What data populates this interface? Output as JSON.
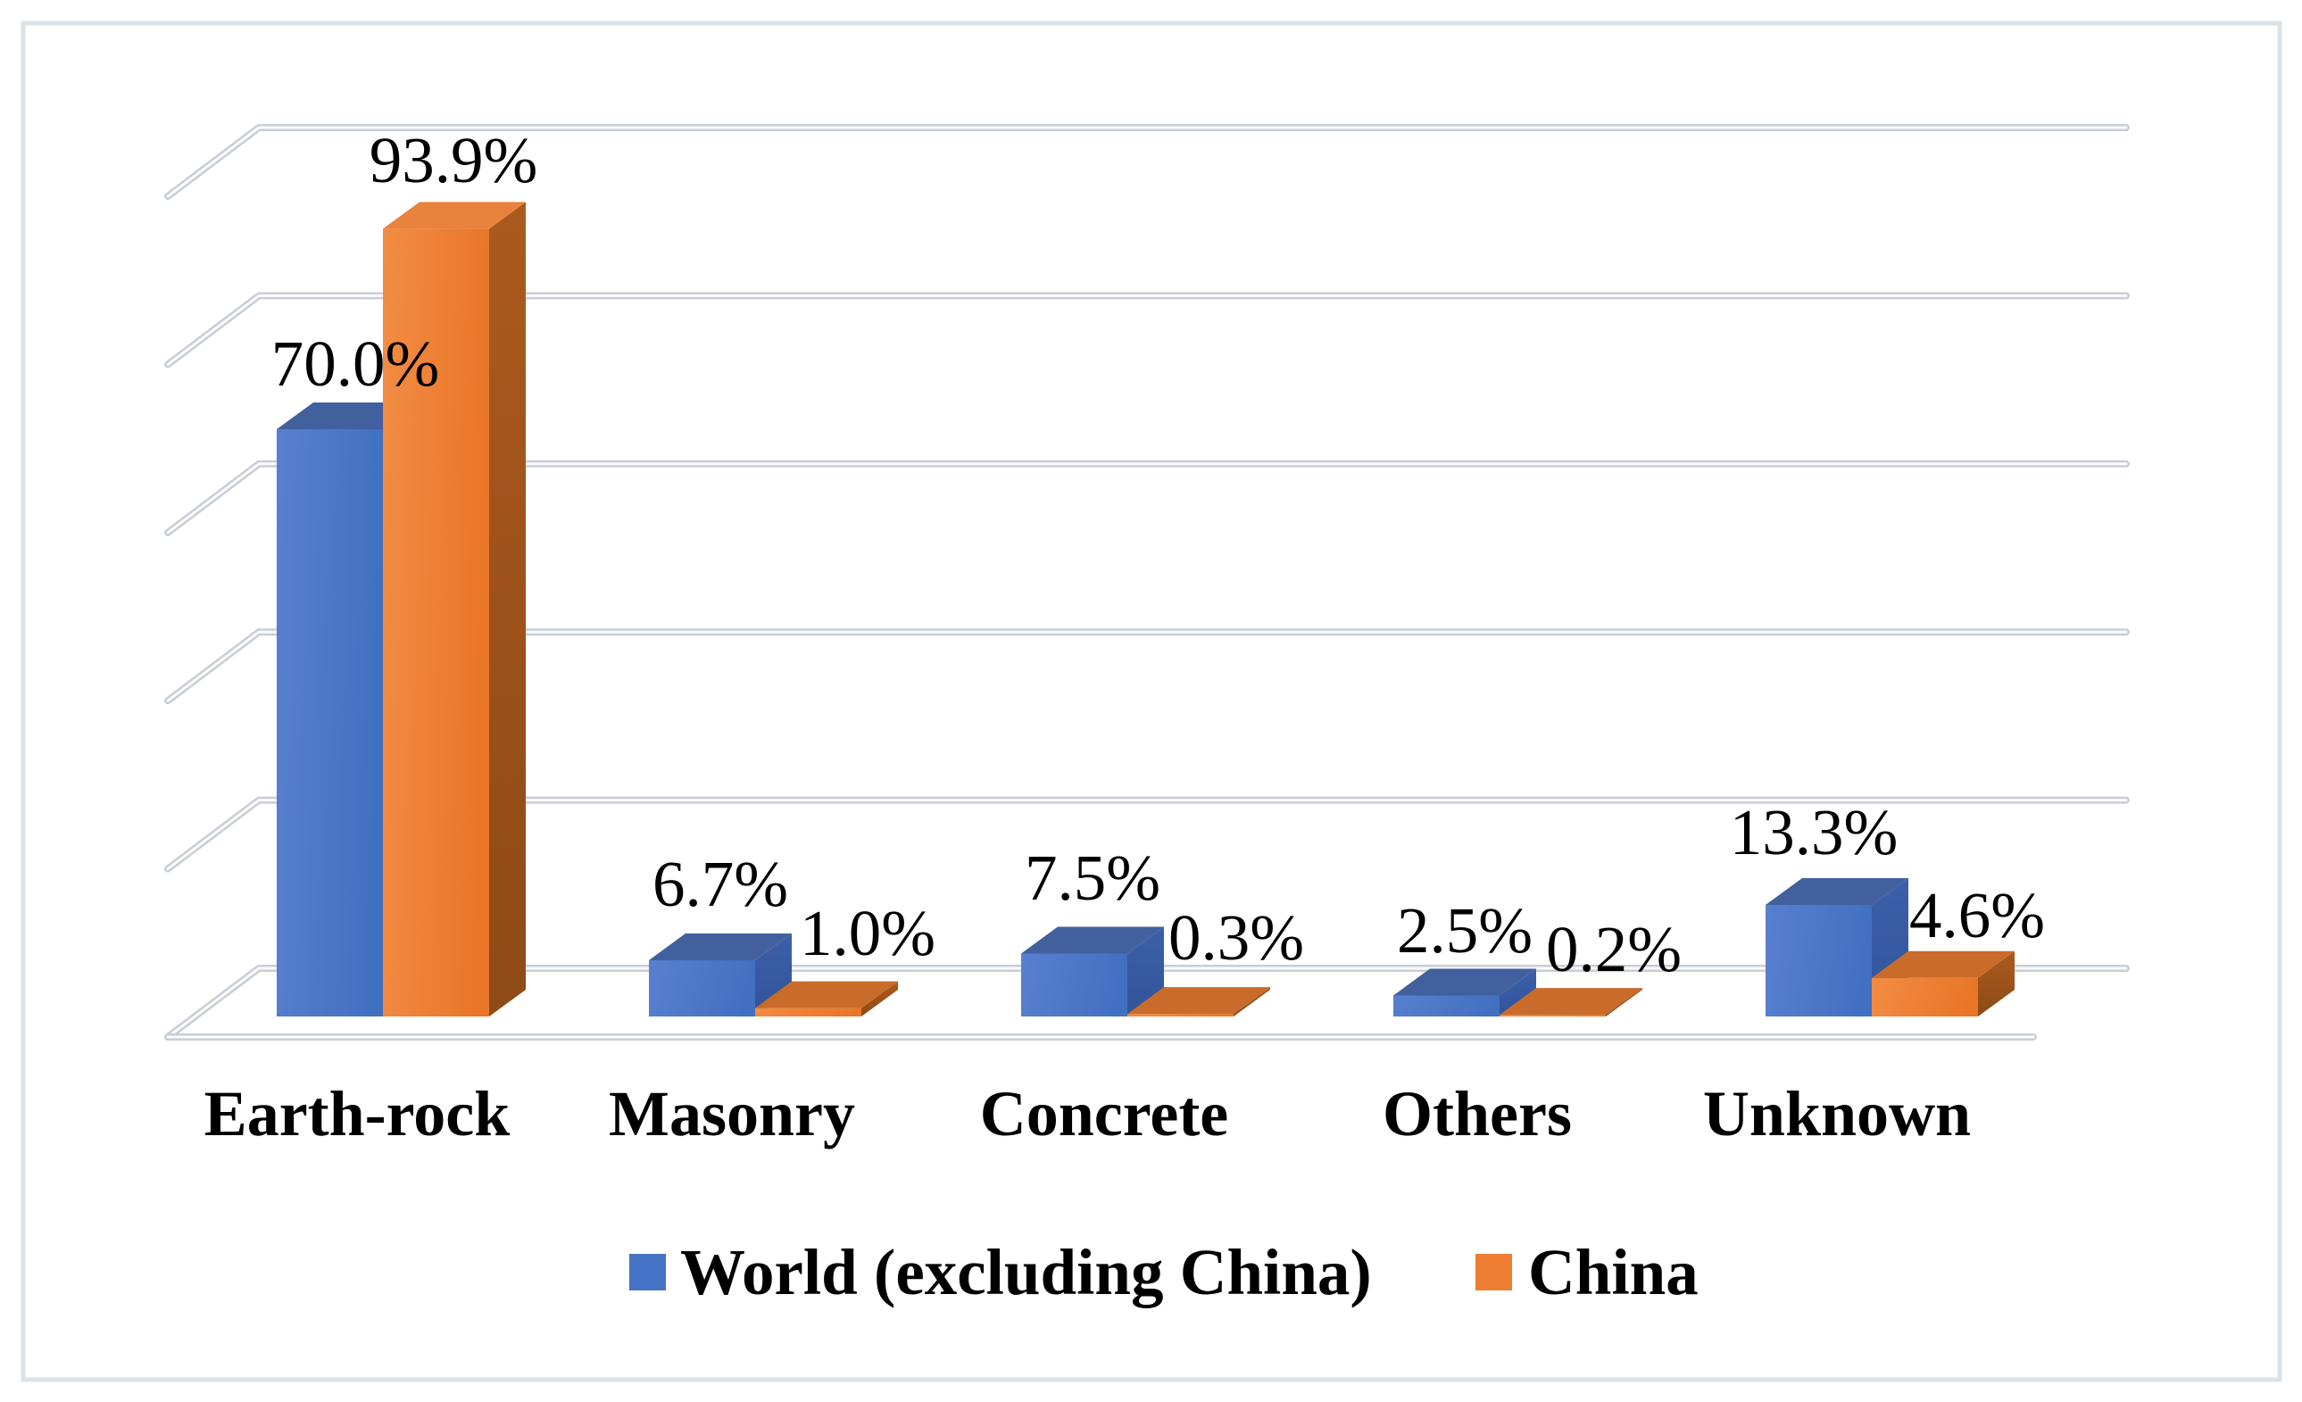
{
  "figure": {
    "background": "#ffffff",
    "border_color": "#dde2e8"
  },
  "chart_data": {
    "type": "bar",
    "style": "3d-clustered-column",
    "title": "",
    "xlabel": "",
    "ylabel": "",
    "ylim": [
      0,
      100
    ],
    "gridline_step_pct": 20,
    "grid": true,
    "value_axis_tick_labels_visible": false,
    "legend_position": "bottom",
    "categories": [
      "Earth-rock",
      "Masonry",
      "Concrete",
      "Others",
      "Unknown"
    ],
    "series": [
      {
        "name": "World (excluding China)",
        "color": "#4472C4",
        "values": [
          70.0,
          6.7,
          7.5,
          2.5,
          13.3
        ],
        "labels": [
          "70.0%",
          "6.7%",
          "7.5%",
          "2.5%",
          "13.3%"
        ],
        "shades": {
          "frontLight": "#5880d0",
          "frontDark": "#4270c0",
          "topTall": "#41609d",
          "topShort": "#41609d",
          "sideLight": "#3c60a9",
          "sideDark": "#31539a"
        }
      },
      {
        "name": "China",
        "color": "#ED7D31",
        "values": [
          93.9,
          1.0,
          0.3,
          0.2,
          4.6
        ],
        "labels": [
          "93.9%",
          "1.0%",
          "0.3%",
          "0.2%",
          "4.6%"
        ],
        "shades": {
          "frontLight": "#f28c44",
          "frontDark": "#e97627",
          "topTall": "#e8823c",
          "topShort": "#c96c2b",
          "sideLight": "#ab5a1e",
          "sideDark": "#8e4a15"
        }
      }
    ]
  },
  "gridlines": {
    "outer_color": "#c9cdd5",
    "inner_color": "#fafbfc"
  },
  "legend": {
    "items": [
      {
        "label": "World (excluding China)",
        "color": "#4472C4"
      },
      {
        "label": "China",
        "color": "#ED7D31"
      }
    ]
  }
}
